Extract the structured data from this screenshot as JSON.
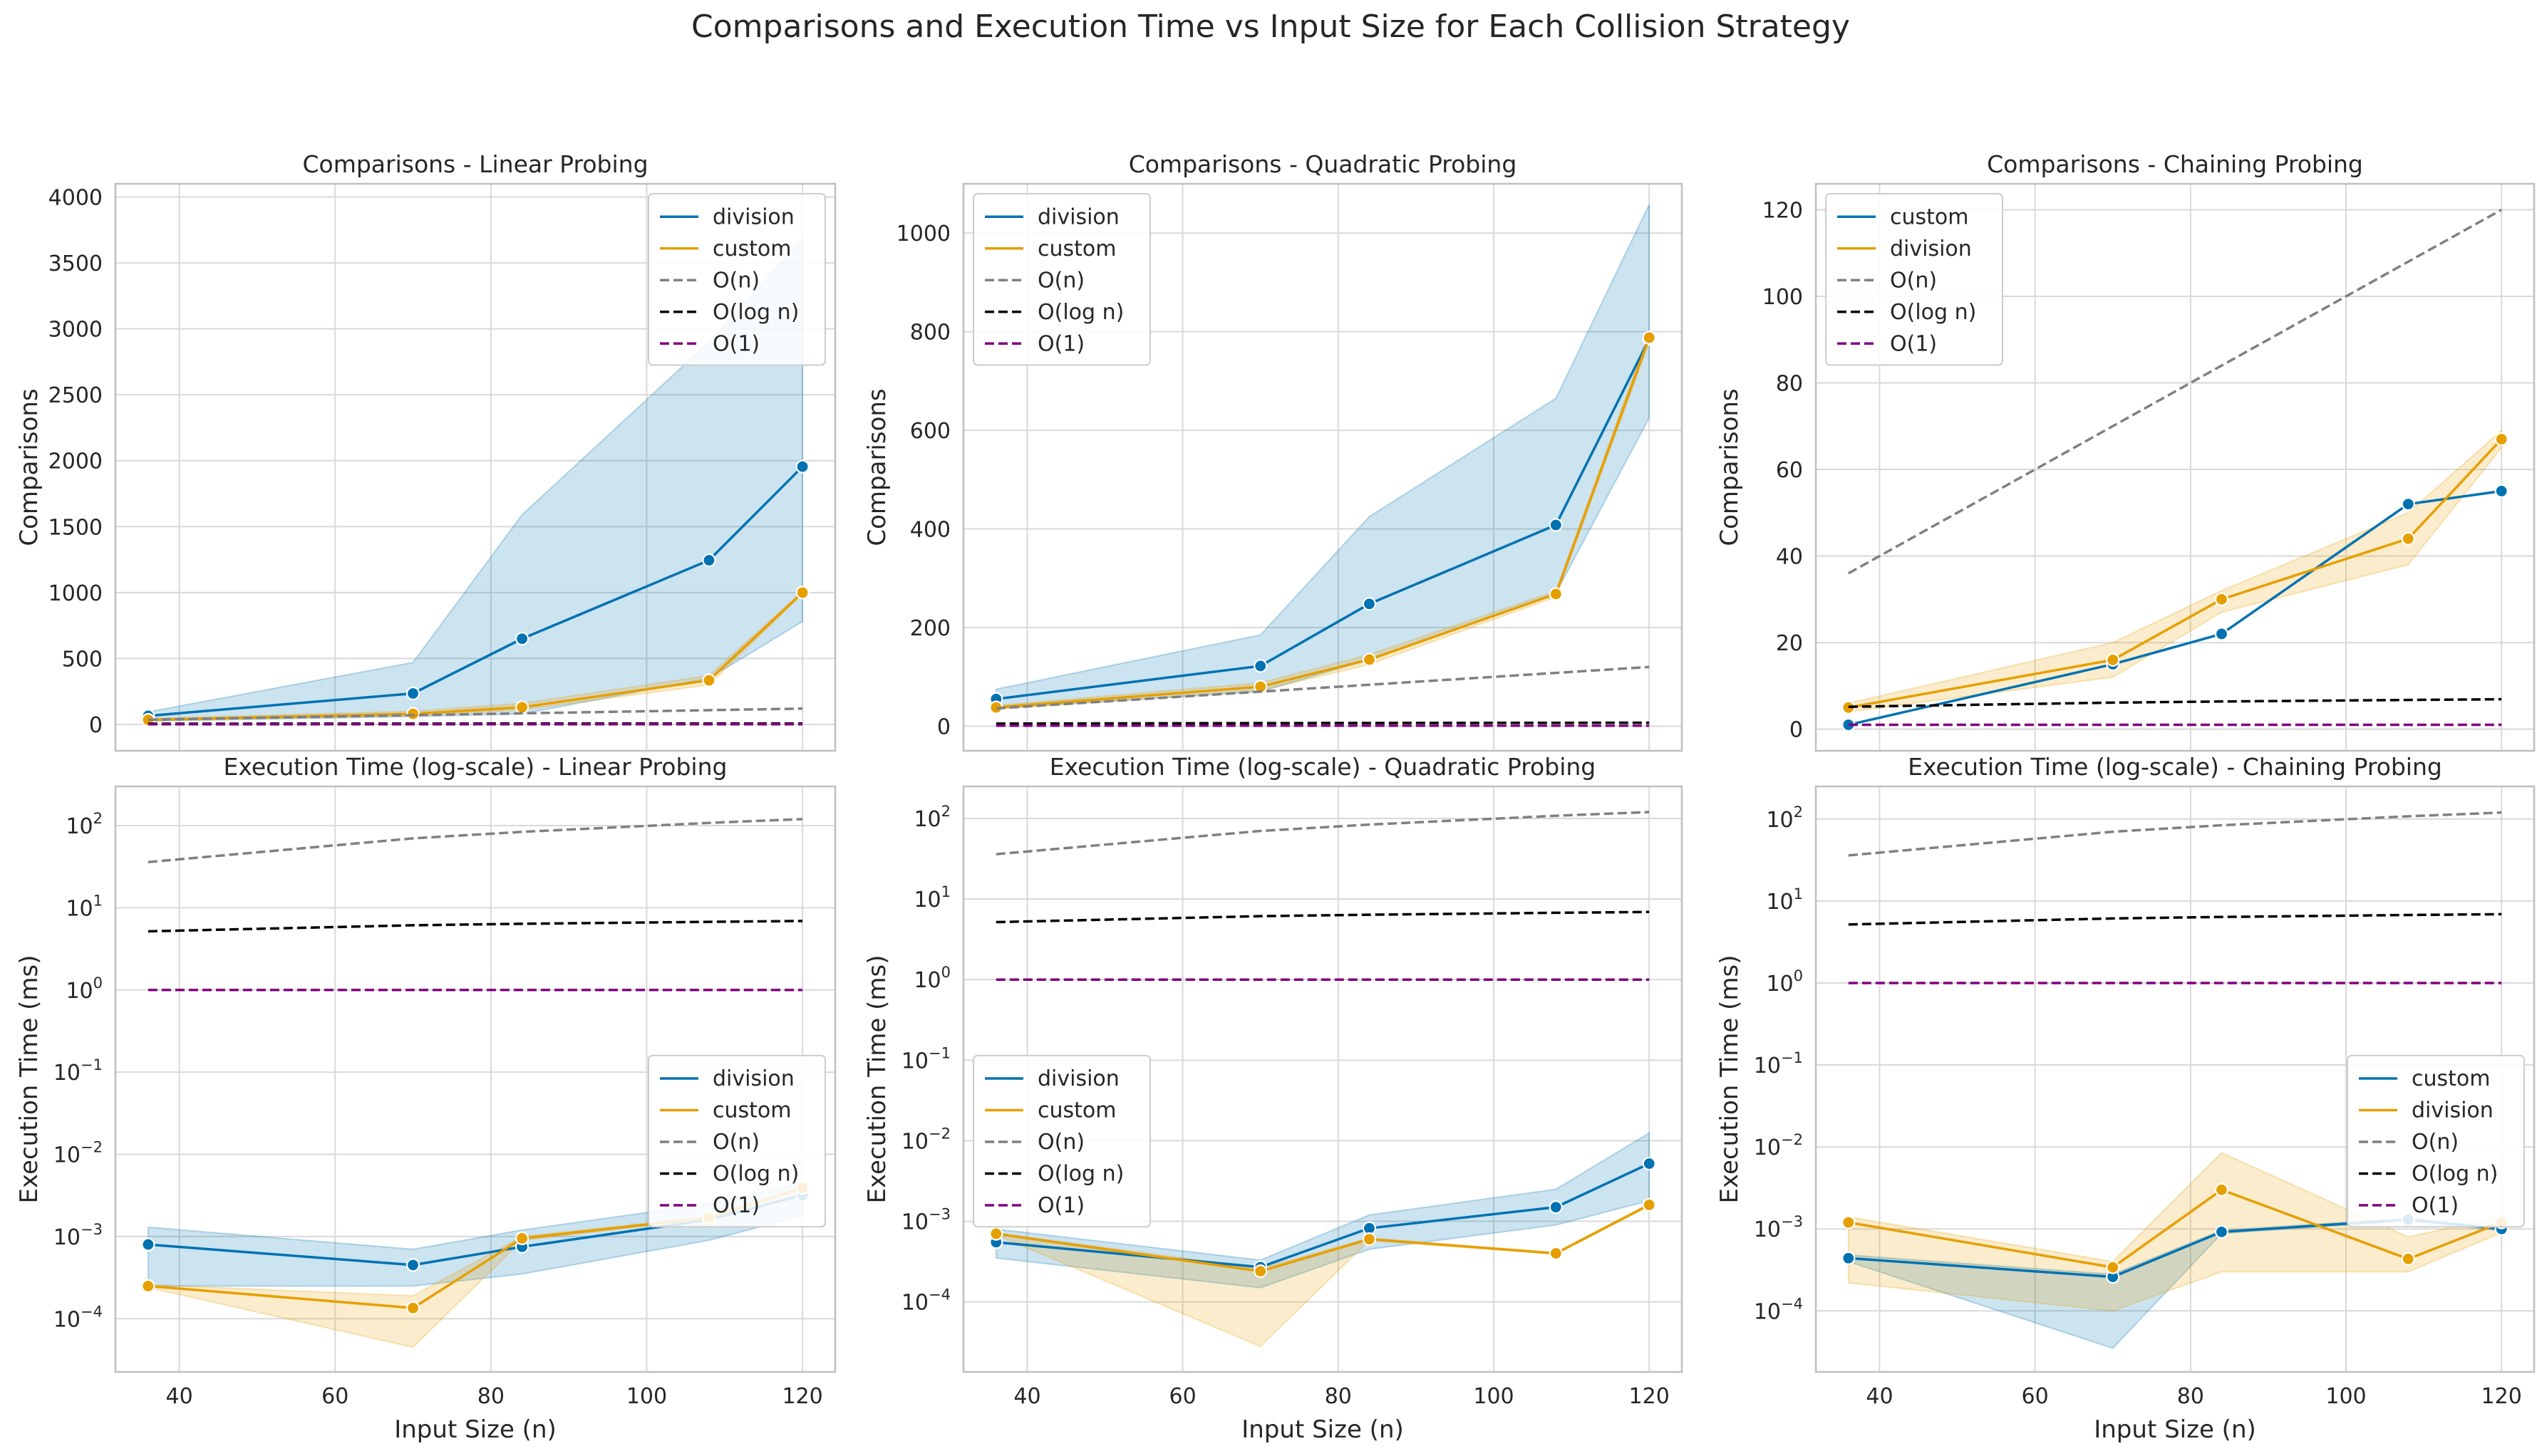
{
  "title": "Comparisons and Execution Time vs Input Size for Each Collision Strategy",
  "colors": {
    "blue": "#0072b2",
    "orange": "#e69f00",
    "gray": "#808080",
    "black": "#000000",
    "purple": "#800080",
    "grid": "#d9d9d9",
    "frame": "#bfbfbf"
  },
  "shared_x": {
    "label": "Input Size (n)",
    "range": [
      31.8,
      124.2
    ],
    "ticks": [
      40,
      60,
      80,
      100,
      120
    ],
    "tick_labels": [
      "40",
      "60",
      "80",
      "100",
      "120"
    ]
  },
  "chart_data": [
    {
      "type": "line",
      "title": "Comparisons - Linear Probing",
      "xlabel": "",
      "ylabel": "Comparisons",
      "yscale": "linear",
      "ylim": [
        -200,
        4100
      ],
      "yticks": [
        0,
        500,
        1000,
        1500,
        2000,
        2500,
        3000,
        3500,
        4000
      ],
      "ytick_labels": [
        "0",
        "500",
        "1000",
        "1500",
        "2000",
        "2500",
        "3000",
        "3500",
        "4000"
      ],
      "show_xticks": false,
      "legend": "upper right",
      "series": [
        {
          "name": "division",
          "color": "#0072b2",
          "markers": true,
          "x": [
            36,
            70,
            84,
            108,
            120
          ],
          "values": [
            65,
            235,
            650,
            1245,
            1955
          ],
          "band_low": [
            25,
            60,
            80,
            350,
            780
          ],
          "band_high": [
            95,
            470,
            1590,
            2900,
            3680
          ]
        },
        {
          "name": "custom",
          "color": "#e69f00",
          "markers": true,
          "x": [
            36,
            70,
            84,
            108,
            120
          ],
          "values": [
            35,
            80,
            130,
            335,
            1000
          ],
          "band_low": [
            28,
            65,
            110,
            300,
            990
          ],
          "band_high": [
            45,
            100,
            160,
            370,
            1010
          ]
        },
        {
          "name": "O(n)",
          "color": "#808080",
          "dashed": true,
          "x": [
            36,
            70,
            84,
            108,
            120
          ],
          "values": [
            36,
            70,
            84,
            108,
            120
          ]
        },
        {
          "name": "O(log n)",
          "color": "#000000",
          "dashed": true,
          "x": [
            36,
            70,
            84,
            108,
            120
          ],
          "values": [
            5.17,
            6.13,
            6.39,
            6.75,
            6.91
          ]
        },
        {
          "name": "O(1)",
          "color": "#800080",
          "dashed": true,
          "x": [
            36,
            70,
            84,
            108,
            120
          ],
          "values": [
            1,
            1,
            1,
            1,
            1
          ]
        }
      ]
    },
    {
      "type": "line",
      "title": "Comparisons - Quadratic Probing",
      "xlabel": "",
      "ylabel": "Comparisons",
      "yscale": "linear",
      "ylim": [
        -50,
        1100
      ],
      "yticks": [
        0,
        200,
        400,
        600,
        800,
        1000
      ],
      "ytick_labels": [
        "0",
        "200",
        "400",
        "600",
        "800",
        "1000"
      ],
      "show_xticks": false,
      "legend": "upper left",
      "series": [
        {
          "name": "division",
          "color": "#0072b2",
          "markers": true,
          "x": [
            36,
            70,
            84,
            108,
            120
          ],
          "values": [
            55,
            122,
            248,
            408,
            785
          ],
          "band_low": [
            36,
            70,
            135,
            270,
            625
          ],
          "band_high": [
            75,
            185,
            425,
            665,
            1058
          ]
        },
        {
          "name": "custom",
          "color": "#e69f00",
          "markers": true,
          "x": [
            36,
            70,
            84,
            108,
            120
          ],
          "values": [
            38,
            80,
            135,
            268,
            788
          ],
          "band_low": [
            34,
            72,
            125,
            262,
            778
          ],
          "band_high": [
            42,
            88,
            145,
            274,
            798
          ]
        },
        {
          "name": "O(n)",
          "color": "#808080",
          "dashed": true,
          "x": [
            36,
            70,
            84,
            108,
            120
          ],
          "values": [
            36,
            70,
            84,
            108,
            120
          ]
        },
        {
          "name": "O(log n)",
          "color": "#000000",
          "dashed": true,
          "x": [
            36,
            70,
            84,
            108,
            120
          ],
          "values": [
            5.17,
            6.13,
            6.39,
            6.75,
            6.91
          ]
        },
        {
          "name": "O(1)",
          "color": "#800080",
          "dashed": true,
          "x": [
            36,
            70,
            84,
            108,
            120
          ],
          "values": [
            1,
            1,
            1,
            1,
            1
          ]
        }
      ]
    },
    {
      "type": "line",
      "title": "Comparisons - Chaining Probing",
      "xlabel": "",
      "ylabel": "Comparisons",
      "yscale": "linear",
      "ylim": [
        -5,
        126
      ],
      "yticks": [
        0,
        20,
        40,
        60,
        80,
        100,
        120
      ],
      "ytick_labels": [
        "0",
        "20",
        "40",
        "60",
        "80",
        "100",
        "120"
      ],
      "show_xticks": false,
      "legend": "upper left",
      "series": [
        {
          "name": "custom",
          "color": "#0072b2",
          "markers": true,
          "x": [
            36,
            70,
            84,
            108,
            120
          ],
          "values": [
            1,
            15,
            22,
            52,
            55
          ]
        },
        {
          "name": "division",
          "color": "#e69f00",
          "markers": true,
          "x": [
            36,
            70,
            84,
            108,
            120
          ],
          "values": [
            5,
            16,
            30,
            44,
            67
          ],
          "band_low": [
            4,
            12,
            27,
            38,
            65
          ],
          "band_high": [
            6,
            20,
            32,
            50,
            69
          ]
        },
        {
          "name": "O(n)",
          "color": "#808080",
          "dashed": true,
          "x": [
            36,
            70,
            84,
            108,
            120
          ],
          "values": [
            36,
            70,
            84,
            108,
            120
          ]
        },
        {
          "name": "O(log n)",
          "color": "#000000",
          "dashed": true,
          "x": [
            36,
            70,
            84,
            108,
            120
          ],
          "values": [
            5.17,
            6.13,
            6.39,
            6.75,
            6.91
          ]
        },
        {
          "name": "O(1)",
          "color": "#800080",
          "dashed": true,
          "x": [
            36,
            70,
            84,
            108,
            120
          ],
          "values": [
            1,
            1,
            1,
            1,
            1
          ]
        }
      ]
    },
    {
      "type": "line",
      "title": "Execution Time (log-scale) - Linear Probing",
      "xlabel": "Input Size (n)",
      "ylabel": "Execution Time (ms)",
      "yscale": "log",
      "ylim": [
        2.25e-05,
        300
      ],
      "yticks": [
        0.0001,
        0.001,
        0.01,
        0.1,
        1,
        10,
        100
      ],
      "ytick_exponents": [
        "−4",
        "−3",
        "−2",
        "−1",
        "0",
        "1",
        "2"
      ],
      "show_xticks": true,
      "legend": "center right",
      "series": [
        {
          "name": "division",
          "color": "#0072b2",
          "markers": true,
          "x": [
            36,
            70,
            84,
            108,
            120
          ],
          "values": [
            0.0008,
            0.00045,
            0.00075,
            0.0016,
            0.0032
          ],
          "band_low": [
            0.00025,
            0.00025,
            0.00035,
            0.0009,
            0.0018
          ],
          "band_high": [
            0.0013,
            0.0007,
            0.0012,
            0.0025,
            0.0045
          ]
        },
        {
          "name": "custom",
          "color": "#e69f00",
          "markers": true,
          "x": [
            36,
            70,
            84,
            108,
            120
          ],
          "values": [
            0.00025,
            0.000135,
            0.00095,
            0.0017,
            0.0039
          ],
          "band_low": [
            0.00024,
            4.5e-05,
            0.0009,
            0.00165,
            0.0037
          ],
          "band_high": [
            0.00026,
            0.00019,
            0.001,
            0.00175,
            0.0041
          ]
        },
        {
          "name": "O(n)",
          "color": "#808080",
          "dashed": true,
          "x": [
            36,
            70,
            84,
            108,
            120
          ],
          "values": [
            36,
            70,
            84,
            108,
            120
          ]
        },
        {
          "name": "O(log n)",
          "color": "#000000",
          "dashed": true,
          "x": [
            36,
            70,
            84,
            108,
            120
          ],
          "values": [
            5.17,
            6.13,
            6.39,
            6.75,
            6.91
          ]
        },
        {
          "name": "O(1)",
          "color": "#800080",
          "dashed": true,
          "x": [
            36,
            70,
            84,
            108,
            120
          ],
          "values": [
            1,
            1,
            1,
            1,
            1
          ]
        }
      ]
    },
    {
      "type": "line",
      "title": "Execution Time (log-scale) - Quadratic Probing",
      "xlabel": "Input Size (n)",
      "ylabel": "Execution Time (ms)",
      "yscale": "log",
      "ylim": [
        1.35e-05,
        250
      ],
      "yticks": [
        0.0001,
        0.001,
        0.01,
        0.1,
        1,
        10,
        100
      ],
      "ytick_exponents": [
        "−4",
        "−3",
        "−2",
        "−1",
        "0",
        "1",
        "2"
      ],
      "show_xticks": true,
      "legend": "center left",
      "series": [
        {
          "name": "division",
          "color": "#0072b2",
          "markers": true,
          "x": [
            36,
            70,
            84,
            108,
            120
          ],
          "values": [
            0.00055,
            0.00027,
            0.00082,
            0.0015,
            0.0052
          ],
          "band_low": [
            0.00035,
            0.00015,
            0.00045,
            0.0009,
            0.0018
          ],
          "band_high": [
            0.0008,
            0.00033,
            0.0012,
            0.0025,
            0.0125
          ]
        },
        {
          "name": "custom",
          "color": "#e69f00",
          "markers": true,
          "x": [
            36,
            70,
            84,
            108,
            120
          ],
          "values": [
            0.0007,
            0.00024,
            0.0006,
            0.0004,
            0.0016
          ],
          "band_low": [
            0.00068,
            2.8e-05,
            0.00058,
            0.00039,
            0.00155
          ],
          "band_high": [
            0.00072,
            0.00026,
            0.00062,
            0.00041,
            0.00165
          ]
        },
        {
          "name": "O(n)",
          "color": "#808080",
          "dashed": true,
          "x": [
            36,
            70,
            84,
            108,
            120
          ],
          "values": [
            36,
            70,
            84,
            108,
            120
          ]
        },
        {
          "name": "O(log n)",
          "color": "#000000",
          "dashed": true,
          "x": [
            36,
            70,
            84,
            108,
            120
          ],
          "values": [
            5.17,
            6.13,
            6.39,
            6.75,
            6.91
          ]
        },
        {
          "name": "O(1)",
          "color": "#800080",
          "dashed": true,
          "x": [
            36,
            70,
            84,
            108,
            120
          ],
          "values": [
            1,
            1,
            1,
            1,
            1
          ]
        }
      ]
    },
    {
      "type": "line",
      "title": "Execution Time (log-scale) - Chaining Probing",
      "xlabel": "Input Size (n)",
      "ylabel": "Execution Time (ms)",
      "yscale": "log",
      "ylim": [
        1.8e-05,
        250
      ],
      "yticks": [
        0.0001,
        0.001,
        0.01,
        0.1,
        1,
        10,
        100
      ],
      "ytick_exponents": [
        "−4",
        "−3",
        "−2",
        "−1",
        "0",
        "1",
        "2"
      ],
      "show_xticks": true,
      "legend": "center right",
      "series": [
        {
          "name": "custom",
          "color": "#0072b2",
          "markers": true,
          "x": [
            36,
            70,
            84,
            108,
            120
          ],
          "values": [
            0.00044,
            0.00026,
            0.00092,
            0.0013,
            0.001
          ],
          "band_low": [
            0.0004,
            3.5e-05,
            0.00088,
            0.00125,
            0.00095
          ],
          "band_high": [
            0.00048,
            0.00028,
            0.00096,
            0.00135,
            0.00105
          ]
        },
        {
          "name": "division",
          "color": "#e69f00",
          "markers": true,
          "x": [
            36,
            70,
            84,
            108,
            120
          ],
          "values": [
            0.0012,
            0.00034,
            0.003,
            0.00043,
            0.0012
          ],
          "band_low": [
            0.00022,
            0.0001,
            0.0003,
            0.0003,
            0.0009
          ],
          "band_high": [
            0.0014,
            0.0004,
            0.0085,
            0.0008,
            0.0014
          ]
        },
        {
          "name": "O(n)",
          "color": "#808080",
          "dashed": true,
          "x": [
            36,
            70,
            84,
            108,
            120
          ],
          "values": [
            36,
            70,
            84,
            108,
            120
          ]
        },
        {
          "name": "O(log n)",
          "color": "#000000",
          "dashed": true,
          "x": [
            36,
            70,
            84,
            108,
            120
          ],
          "values": [
            5.17,
            6.13,
            6.39,
            6.75,
            6.91
          ]
        },
        {
          "name": "O(1)",
          "color": "#800080",
          "dashed": true,
          "x": [
            36,
            70,
            84,
            108,
            120
          ],
          "values": [
            1,
            1,
            1,
            1,
            1
          ]
        }
      ]
    }
  ]
}
